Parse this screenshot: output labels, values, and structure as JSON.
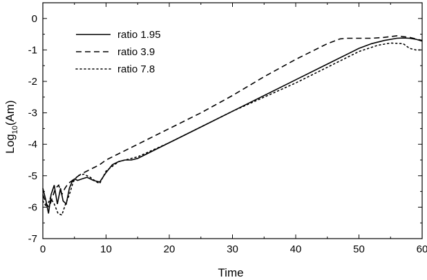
{
  "chart_data": {
    "type": "line",
    "title": "",
    "xlabel": "Time",
    "ylabel": "Log10(Am)",
    "ylabel_base": "Log",
    "ylabel_sub": "10",
    "ylabel_rest": "(Am)",
    "xlim": [
      0,
      60
    ],
    "ylim": [
      -7,
      0.5
    ],
    "xticks": [
      0,
      10,
      20,
      30,
      40,
      50,
      60
    ],
    "yticks": [
      0,
      -1,
      -2,
      -3,
      -4,
      -5,
      -6,
      -7
    ],
    "grid": false,
    "legend_position": "top-left",
    "series": [
      {
        "name": "ratio 1.95",
        "style": "solid",
        "x": [
          0,
          0.5,
          0.9,
          1.3,
          1.8,
          2.3,
          2.8,
          3.2,
          3.7,
          4.2,
          4.6,
          5.0,
          5.5,
          6.2,
          7.0,
          8.0,
          9.0,
          10.0,
          11.0,
          12.0,
          13.0,
          14.0,
          15.0,
          17.0,
          20.0,
          25.0,
          30.0,
          35.0,
          40.0,
          45.0,
          50.0,
          52.0,
          54.0,
          56.0,
          57.0,
          58.0,
          59.0,
          60.0
        ],
        "y": [
          -5.4,
          -5.8,
          -6.2,
          -5.6,
          -5.3,
          -5.9,
          -5.4,
          -5.8,
          -5.9,
          -5.4,
          -5.2,
          -5.1,
          -5.15,
          -5.1,
          -5.05,
          -5.15,
          -5.2,
          -4.9,
          -4.65,
          -4.55,
          -4.5,
          -4.5,
          -4.45,
          -4.25,
          -3.95,
          -3.45,
          -2.95,
          -2.45,
          -1.95,
          -1.45,
          -0.95,
          -0.8,
          -0.7,
          -0.63,
          -0.62,
          -0.63,
          -0.66,
          -0.72
        ]
      },
      {
        "name": "ratio 3.9",
        "style": "dashed",
        "x": [
          0,
          0.5,
          1.0,
          1.5,
          2.0,
          2.5,
          3.0,
          3.5,
          4.0,
          5.0,
          6.0,
          7.0,
          8.0,
          9.0,
          10.0,
          12.0,
          15.0,
          20.0,
          25.0,
          30.0,
          35.0,
          40.0,
          45.0,
          47.0,
          48.0,
          50.0,
          52.0,
          54.0,
          56.0,
          58.0,
          59.0,
          60.0
        ],
        "y": [
          -5.6,
          -5.9,
          -6.0,
          -5.7,
          -5.4,
          -5.3,
          -5.6,
          -5.4,
          -5.25,
          -5.1,
          -4.95,
          -4.85,
          -4.75,
          -4.65,
          -4.5,
          -4.3,
          -4.0,
          -3.5,
          -3.0,
          -2.45,
          -1.85,
          -1.3,
          -0.8,
          -0.65,
          -0.63,
          -0.63,
          -0.63,
          -0.6,
          -0.55,
          -0.6,
          -0.65,
          -0.7
        ]
      },
      {
        "name": "ratio 7.8",
        "style": "dotted",
        "x": [
          0,
          0.6,
          1.2,
          1.8,
          2.4,
          3.0,
          3.6,
          4.2,
          4.8,
          5.5,
          6.5,
          7.5,
          8.5,
          9.0,
          10.0,
          12.0,
          15.0,
          20.0,
          25.0,
          30.0,
          35.0,
          40.0,
          45.0,
          50.0,
          53.0,
          55.0,
          57.0,
          58.0,
          59.0,
          60.0
        ],
        "y": [
          -5.8,
          -6.0,
          -5.7,
          -5.9,
          -6.2,
          -6.25,
          -5.9,
          -5.6,
          -5.2,
          -5.0,
          -4.95,
          -5.05,
          -5.2,
          -5.25,
          -4.85,
          -4.55,
          -4.4,
          -3.95,
          -3.45,
          -2.95,
          -2.5,
          -2.05,
          -1.55,
          -1.05,
          -0.85,
          -0.78,
          -0.8,
          -0.95,
          -1.0,
          -1.0
        ]
      }
    ]
  }
}
